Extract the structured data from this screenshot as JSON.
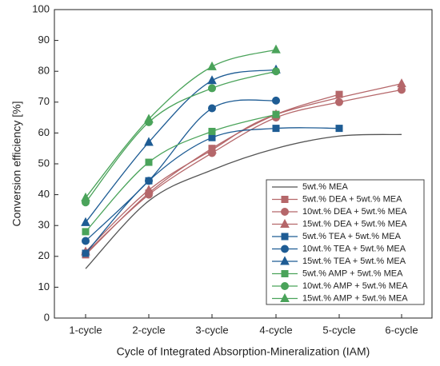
{
  "chart_data": {
    "type": "line",
    "x_label": "Cycle of Integrated Absorption-Mineralization (IAM)",
    "y_label": "Conversion efficiency [%]",
    "categories": [
      "1-cycle",
      "2-cycle",
      "3-cycle",
      "4-cycle",
      "5-cycle",
      "6-cycle"
    ],
    "ylim": [
      0,
      100
    ],
    "yticks": [
      0,
      10,
      20,
      30,
      40,
      50,
      60,
      70,
      80,
      90,
      100
    ],
    "legend": "lower right",
    "series": [
      {
        "name": "5wt.% MEA",
        "color": "#555555",
        "marker": "none",
        "values": [
          16,
          38,
          48,
          55,
          59,
          59.5
        ]
      },
      {
        "name": "5wt.% DEA + 5wt.% MEA",
        "color": "#b5676a",
        "marker": "square",
        "values": [
          20.5,
          40.5,
          55,
          66,
          72.5,
          null
        ]
      },
      {
        "name": "10wt.% DEA + 5wt.% MEA",
        "color": "#b5676a",
        "marker": "circle",
        "values": [
          21,
          40,
          53.5,
          65,
          70,
          74
        ]
      },
      {
        "name": "15wt.% DEA + 5wt.% MEA",
        "color": "#b5676a",
        "marker": "triangle",
        "values": [
          21.5,
          41.5,
          54.5,
          66,
          null,
          76
        ]
      },
      {
        "name": "5wt.% TEA + 5wt.% MEA",
        "color": "#1e5c94",
        "marker": "square",
        "values": [
          21,
          44.5,
          58.5,
          61.5,
          61.5,
          null
        ]
      },
      {
        "name": "10wt.% TEA + 5wt.% MEA",
        "color": "#1e5c94",
        "marker": "circle",
        "values": [
          25,
          44.5,
          68,
          70.5,
          null,
          null
        ]
      },
      {
        "name": "15wt.% TEA + 5wt.% MEA",
        "color": "#1e5c94",
        "marker": "triangle",
        "values": [
          31,
          57,
          77,
          80.5,
          null,
          null
        ]
      },
      {
        "name": "5wt.% AMP + 5wt.% MEA",
        "color": "#4aa35a",
        "marker": "square",
        "values": [
          28,
          50.5,
          60.5,
          66,
          null,
          null
        ]
      },
      {
        "name": "10wt.% AMP + 5wt.% MEA",
        "color": "#4aa35a",
        "marker": "circle",
        "values": [
          37.5,
          63.5,
          74.5,
          80,
          null,
          null
        ]
      },
      {
        "name": "15wt.% AMP + 5wt.% MEA",
        "color": "#4aa35a",
        "marker": "triangle",
        "values": [
          39,
          64.5,
          81.5,
          87,
          null,
          null
        ]
      }
    ]
  }
}
